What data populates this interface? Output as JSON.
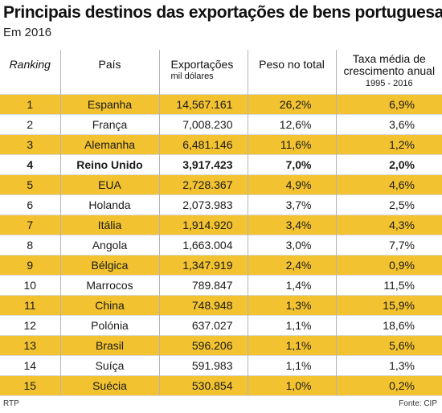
{
  "title": "Principais destinos das exportações de bens portuguesas",
  "subtitle": "Em 2016",
  "columns": {
    "ranking": "Ranking",
    "pais": "País",
    "exportacoes": "Exportações",
    "exportacoes_unit": "mil dólares",
    "peso": "Peso no total",
    "taxa_line1": "Taxa média de",
    "taxa_line2": "crescimento anual",
    "taxa_period": "1995 - 2016"
  },
  "rows": [
    {
      "ranking": "1",
      "pais": "Espanha",
      "exportacoes": "14,567.161",
      "peso": "26,2%",
      "taxa": "6,9%"
    },
    {
      "ranking": "2",
      "pais": "França",
      "exportacoes": "7,008.230",
      "peso": "12,6%",
      "taxa": "3,6%"
    },
    {
      "ranking": "3",
      "pais": "Alemanha",
      "exportacoes": "6,481.146",
      "peso": "11,6%",
      "taxa": "1,2%"
    },
    {
      "ranking": "4",
      "pais": "Reino Unido",
      "exportacoes": "3,917.423",
      "peso": "7,0%",
      "taxa": "2,0%"
    },
    {
      "ranking": "5",
      "pais": "EUA",
      "exportacoes": "2,728.367",
      "peso": "4,9%",
      "taxa": "4,6%"
    },
    {
      "ranking": "6",
      "pais": "Holanda",
      "exportacoes": "2,073.983",
      "peso": "3,7%",
      "taxa": "2,5%"
    },
    {
      "ranking": "7",
      "pais": "Itália",
      "exportacoes": "1,914.920",
      "peso": "3,4%",
      "taxa": "4,3%"
    },
    {
      "ranking": "8",
      "pais": "Angola",
      "exportacoes": "1,663.004",
      "peso": "3,0%",
      "taxa": "7,7%"
    },
    {
      "ranking": "9",
      "pais": "Bélgica",
      "exportacoes": "1,347.919",
      "peso": "2,4%",
      "taxa": "0,9%"
    },
    {
      "ranking": "10",
      "pais": "Marrocos",
      "exportacoes": "789.847",
      "peso": "1,4%",
      "taxa": "11,5%"
    },
    {
      "ranking": "11",
      "pais": "China",
      "exportacoes": "748.948",
      "peso": "1,3%",
      "taxa": "15,9%"
    },
    {
      "ranking": "12",
      "pais": "Polónia",
      "exportacoes": "637.027",
      "peso": "1,1%",
      "taxa": "18,6%"
    },
    {
      "ranking": "13",
      "pais": "Brasil",
      "exportacoes": "596.206",
      "peso": "1,1%",
      "taxa": "5,6%"
    },
    {
      "ranking": "14",
      "pais": "Suíça",
      "exportacoes": "591.983",
      "peso": "1,1%",
      "taxa": "1,3%"
    },
    {
      "ranking": "15",
      "pais": "Suécia",
      "exportacoes": "530.854",
      "peso": "1,0%",
      "taxa": "0,2%"
    }
  ],
  "highlight_color": "#f2c230",
  "bold_row_ranking": "4",
  "footer": {
    "left": "RTP",
    "right": "Fonte: CIP"
  }
}
